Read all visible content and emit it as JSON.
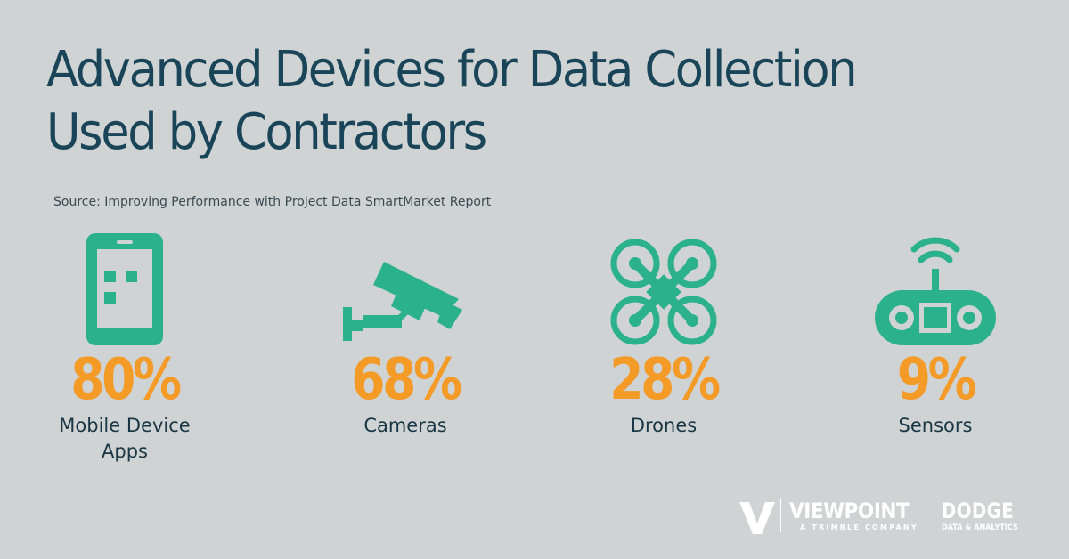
{
  "title": {
    "line1": "Advanced Devices for Data Collection",
    "line2": "Used by Contractors"
  },
  "source": "Source: Improving Performance with Project Data SmartMarket Report",
  "colors": {
    "background": "#cfd3d4",
    "title": "#1a4558",
    "icon": "#2bb18c",
    "percent": "#f39a27"
  },
  "stats": [
    {
      "icon": "mobile-phone-icon",
      "percent": "80%",
      "value": 80,
      "label_line1": "Mobile Device",
      "label_line2": "Apps"
    },
    {
      "icon": "security-camera-icon",
      "percent": "68%",
      "value": 68,
      "label_line1": "Cameras",
      "label_line2": ""
    },
    {
      "icon": "drone-icon",
      "percent": "28%",
      "value": 28,
      "label_line1": "Drones",
      "label_line2": ""
    },
    {
      "icon": "sensor-icon",
      "percent": "9%",
      "value": 9,
      "label_line1": "Sensors",
      "label_line2": ""
    }
  ],
  "logos": {
    "viewpoint_name": "VIEWPOINT",
    "viewpoint_sub": "A TRIMBLE COMPANY",
    "dodge_name": "DODGE",
    "dodge_sub": "DATA & ANALYTICS"
  }
}
